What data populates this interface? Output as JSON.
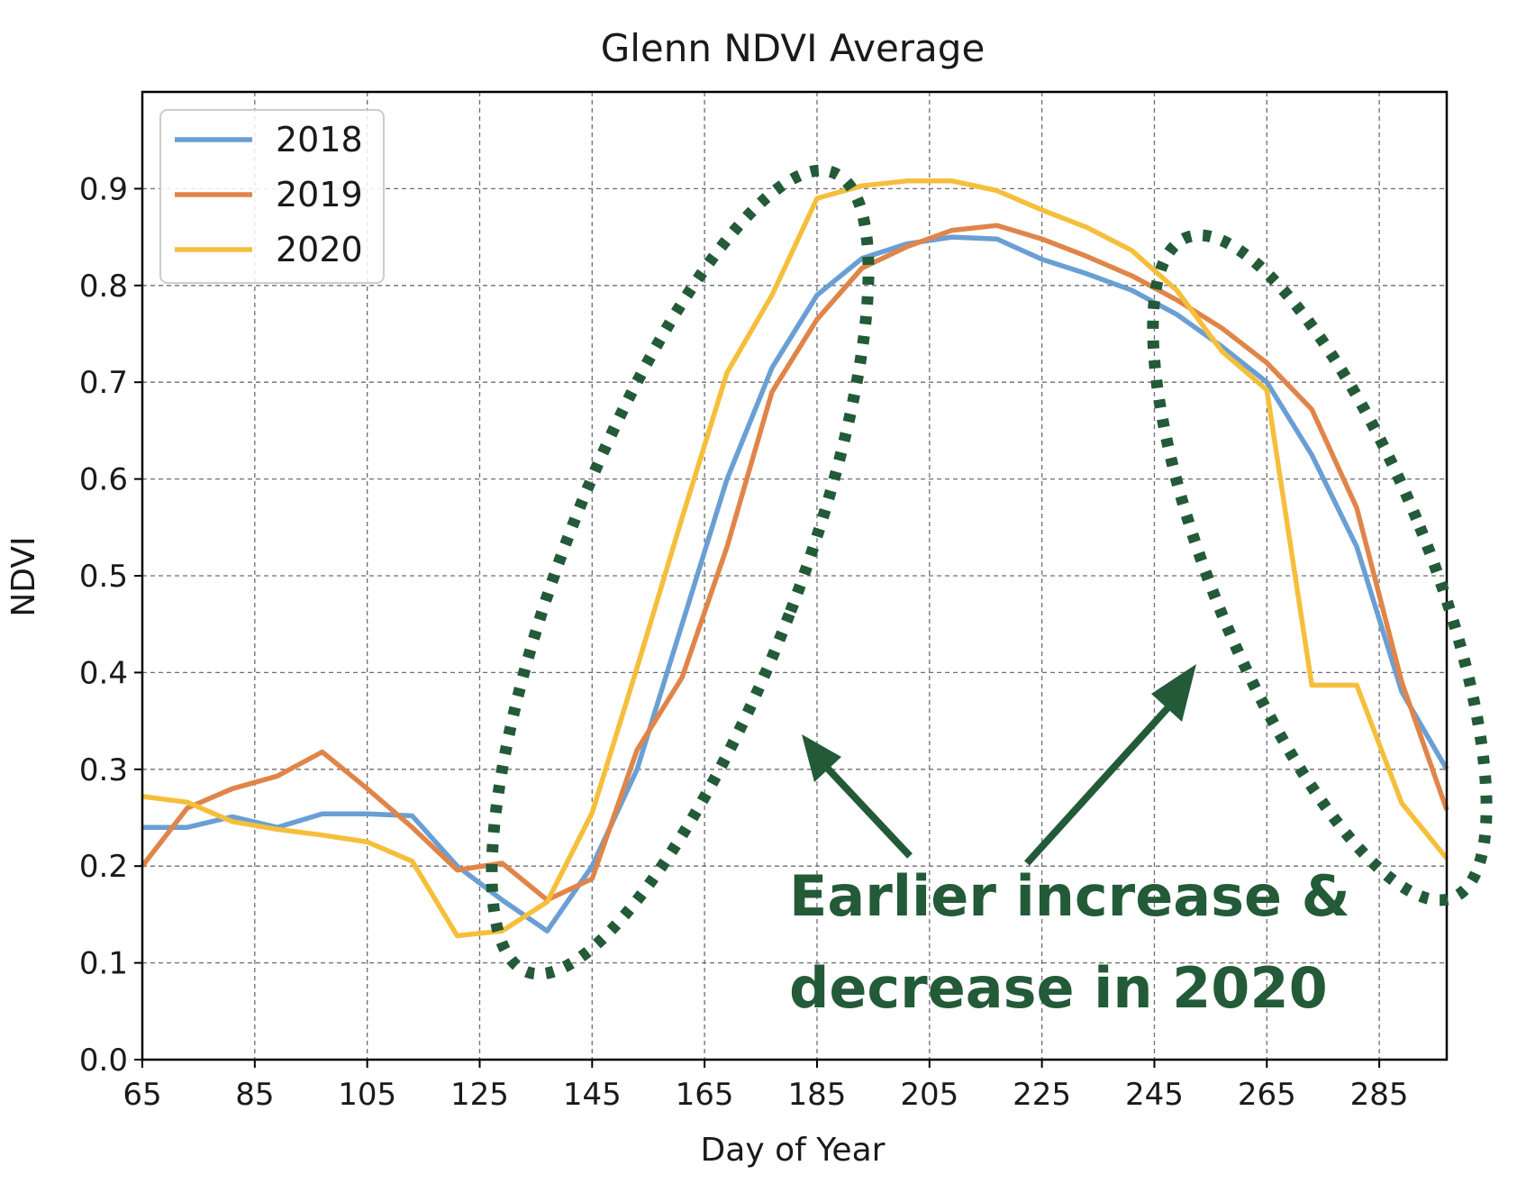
{
  "chart_data": {
    "type": "line",
    "title": "Glenn NDVI Average",
    "xlabel": "Day of Year",
    "ylabel": "NDVI",
    "xlim": [
      65,
      297
    ],
    "ylim": [
      0,
      1.0
    ],
    "xticks": [
      65,
      85,
      105,
      125,
      145,
      165,
      185,
      205,
      225,
      245,
      265,
      285
    ],
    "yticks": [
      0.0,
      0.1,
      0.2,
      0.3,
      0.4,
      0.5,
      0.6,
      0.7,
      0.8,
      0.9
    ],
    "ytick_labels": [
      "0.0",
      "0.1",
      "0.2",
      "0.3",
      "0.4",
      "0.5",
      "0.6",
      "0.7",
      "0.8",
      "0.9"
    ],
    "grid": true,
    "legend_position": "top-left",
    "series": [
      {
        "name": "2018",
        "color": "#6a9fd4",
        "x": [
          65,
          73,
          81,
          89,
          97,
          105,
          113,
          121,
          129,
          137,
          145,
          153,
          161,
          169,
          177,
          185,
          193,
          201,
          209,
          217,
          225,
          233,
          241,
          249,
          257,
          265,
          273,
          281,
          289,
          297
        ],
        "y": [
          0.24,
          0.24,
          0.251,
          0.24,
          0.254,
          0.254,
          0.252,
          0.2,
          0.165,
          0.133,
          0.2,
          0.3,
          0.45,
          0.6,
          0.715,
          0.79,
          0.828,
          0.843,
          0.85,
          0.848,
          0.827,
          0.812,
          0.795,
          0.77,
          0.737,
          0.7,
          0.625,
          0.53,
          0.38,
          0.3
        ]
      },
      {
        "name": "2019",
        "color": "#e0854a",
        "x": [
          65,
          73,
          81,
          89,
          97,
          105,
          113,
          121,
          129,
          137,
          145,
          153,
          161,
          169,
          177,
          185,
          193,
          201,
          209,
          217,
          225,
          233,
          241,
          249,
          257,
          265,
          273,
          281,
          289,
          297
        ],
        "y": [
          0.2,
          0.26,
          0.28,
          0.293,
          0.318,
          0.28,
          0.24,
          0.196,
          0.203,
          0.165,
          0.187,
          0.32,
          0.395,
          0.53,
          0.69,
          0.765,
          0.818,
          0.84,
          0.857,
          0.862,
          0.848,
          0.83,
          0.81,
          0.785,
          0.756,
          0.72,
          0.672,
          0.57,
          0.39,
          0.258
        ]
      },
      {
        "name": "2020",
        "color": "#f5bf3c",
        "x": [
          65,
          73,
          81,
          89,
          97,
          105,
          113,
          121,
          129,
          137,
          145,
          153,
          161,
          169,
          177,
          185,
          193,
          201,
          209,
          217,
          225,
          233,
          241,
          249,
          257,
          265,
          273,
          281,
          289,
          297
        ],
        "y": [
          0.272,
          0.266,
          0.246,
          0.238,
          0.232,
          0.225,
          0.205,
          0.128,
          0.133,
          0.163,
          0.255,
          0.405,
          0.56,
          0.71,
          0.79,
          0.89,
          0.903,
          0.908,
          0.908,
          0.898,
          0.878,
          0.86,
          0.836,
          0.795,
          0.732,
          0.692,
          0.387,
          0.387,
          0.265,
          0.208
        ]
      }
    ],
    "annotation": {
      "lines": [
        "Earlier increase &",
        "decrease in 2020"
      ],
      "color": "#235a38"
    }
  }
}
